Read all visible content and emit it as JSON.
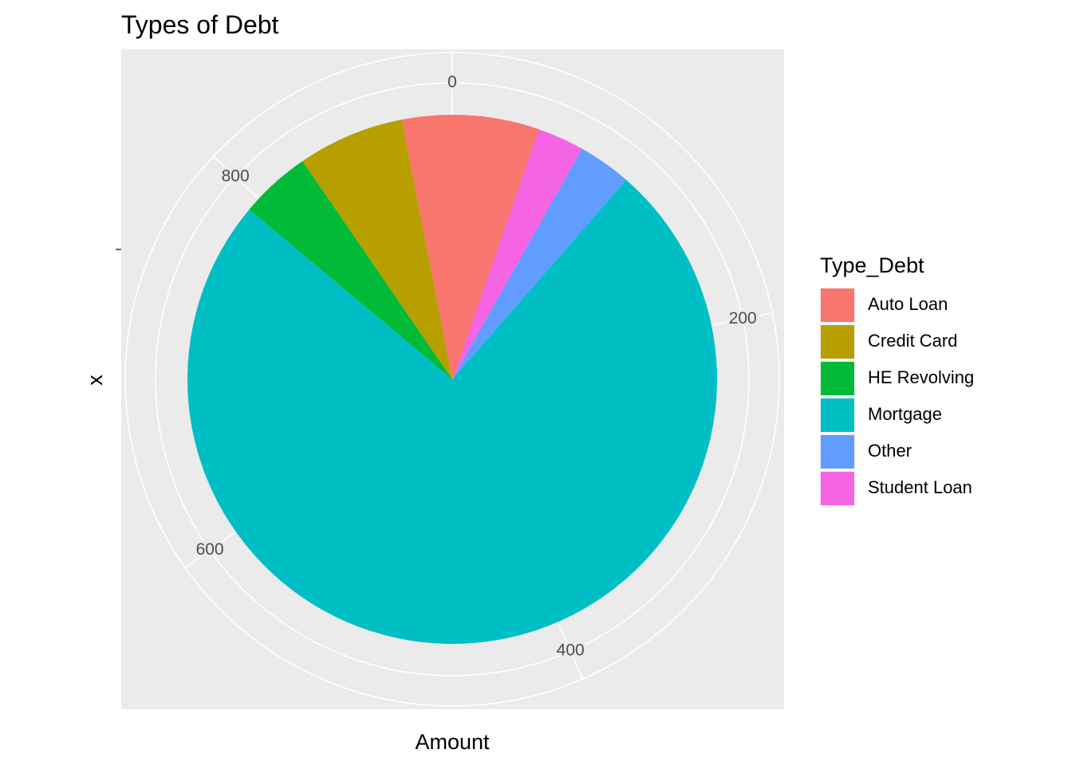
{
  "chart_data": {
    "type": "pie",
    "title": "Types of Debt",
    "xlabel": "Amount",
    "ylabel": "x",
    "theta_range": [
      0,
      920
    ],
    "theta_ticks": [
      {
        "value": 0,
        "label": "0"
      },
      {
        "value": 200,
        "label": "200"
      },
      {
        "value": 400,
        "label": "400"
      },
      {
        "value": 600,
        "label": "600"
      },
      {
        "value": 800,
        "label": "800"
      }
    ],
    "legend_title": "Type_Debt",
    "legend_position": "right",
    "grid": true,
    "panel_color": "#ebebeb",
    "grid_color": "#ffffff",
    "slices": [
      {
        "label": "Student Loan",
        "value": 75,
        "color": "#F564E3"
      },
      {
        "label": "Other",
        "value": 30,
        "color": "#619CFF"
      },
      {
        "label": "Mortgage",
        "value": 687,
        "color": "#00BFC4"
      },
      {
        "label": "HE Revolving",
        "value": 40,
        "color": "#00BA38"
      },
      {
        "label": "Credit Card",
        "value": 60,
        "color": "#B79F00"
      },
      {
        "label": "Auto Loan",
        "value": 77,
        "color": "#F8766D"
      }
    ],
    "legend": [
      {
        "label": "Auto Loan",
        "color": "#F8766D"
      },
      {
        "label": "Credit Card",
        "color": "#B79F00"
      },
      {
        "label": "HE Revolving",
        "color": "#00BA38"
      },
      {
        "label": "Mortgage",
        "color": "#00BFC4"
      },
      {
        "label": "Other",
        "color": "#619CFF"
      },
      {
        "label": "Student Loan",
        "color": "#F564E3"
      }
    ]
  }
}
